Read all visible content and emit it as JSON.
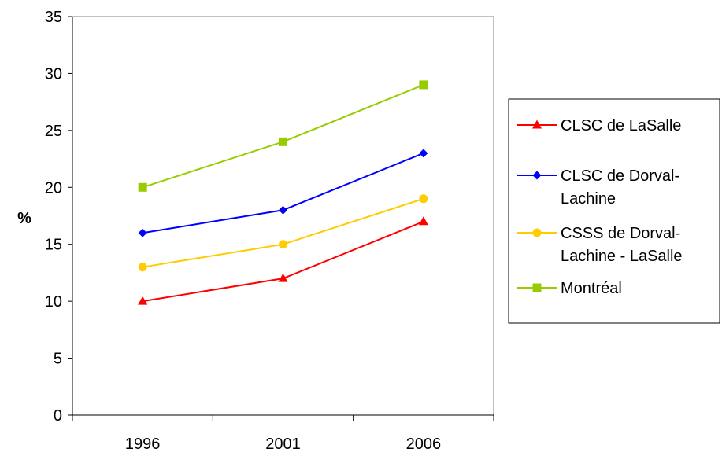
{
  "chart_data": {
    "type": "line",
    "title": "",
    "xlabel": "",
    "ylabel": "%",
    "categories": [
      "1996",
      "2001",
      "2006"
    ],
    "ylim": [
      0,
      35
    ],
    "yticks": [
      "0",
      "5",
      "10",
      "15",
      "20",
      "25",
      "30",
      "35"
    ],
    "grid": false,
    "legend_position": "right",
    "series": [
      {
        "name": "CLSC de LaSalle",
        "name_lines": [
          "CLSC de LaSalle"
        ],
        "color": "#ff0000",
        "marker": "triangle",
        "values": [
          10,
          12,
          17
        ]
      },
      {
        "name": "CLSC de Dorval-Lachine",
        "name_lines": [
          "CLSC de Dorval-",
          "Lachine"
        ],
        "color": "#0000ff",
        "marker": "diamond",
        "values": [
          16,
          18,
          23
        ]
      },
      {
        "name": "CSSS de Dorval-Lachine - LaSalle",
        "name_lines": [
          "CSSS de Dorval-",
          "Lachine - LaSalle"
        ],
        "color": "#ffcc00",
        "marker": "circle",
        "values": [
          13,
          15,
          19
        ]
      },
      {
        "name": "Montréal",
        "name_lines": [
          "Montréal"
        ],
        "color": "#99cc00",
        "marker": "square",
        "values": [
          20,
          24,
          29
        ]
      }
    ]
  }
}
